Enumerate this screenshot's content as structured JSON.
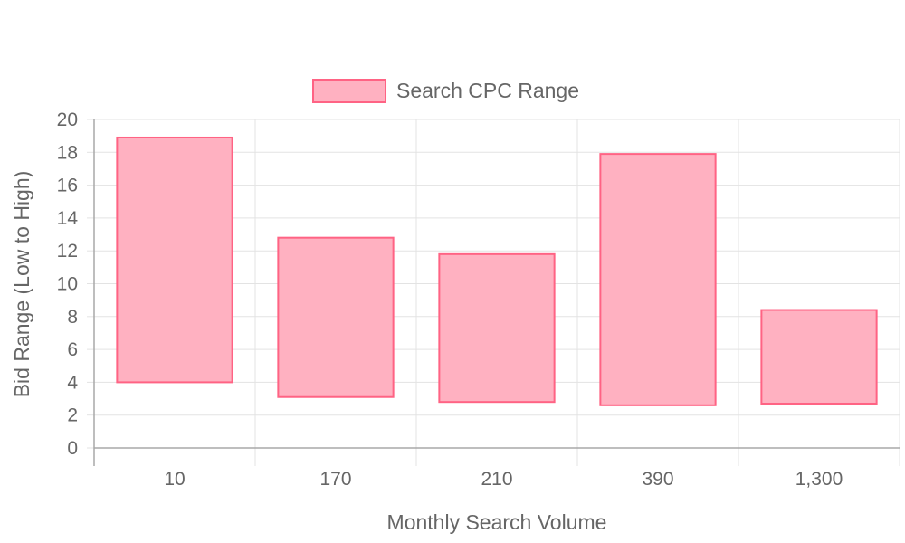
{
  "chart_data": {
    "type": "bar",
    "subtype": "floating-range",
    "categories": [
      "10",
      "170",
      "210",
      "390",
      "1,300"
    ],
    "series": [
      {
        "name": "Search CPC Range",
        "ranges": [
          [
            4.0,
            18.9
          ],
          [
            3.1,
            12.8
          ],
          [
            2.8,
            11.8
          ],
          [
            2.6,
            17.9
          ],
          [
            2.7,
            8.4
          ]
        ]
      }
    ],
    "xlabel": "Monthly Search Volume",
    "ylabel": "Bid Range (Low to High)",
    "ylim": [
      0,
      20
    ],
    "yticks": [
      "0",
      "2",
      "4",
      "6",
      "8",
      "10",
      "12",
      "14",
      "16",
      "18",
      "20"
    ],
    "grid": true,
    "legend_position": "top-center",
    "colors": {
      "bar_fill": "#ffb1c1",
      "bar_stroke": "#ff6384",
      "grid": "#e3e3e3",
      "axis": "#a8a8a8",
      "text": "#666666"
    }
  }
}
